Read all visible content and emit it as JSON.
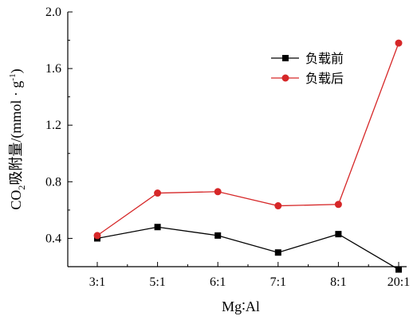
{
  "chart_data": {
    "type": "line",
    "categories": [
      "3:1",
      "5:1",
      "6:1",
      "7:1",
      "8:1",
      "20:1"
    ],
    "series": [
      {
        "name": "负载前",
        "values": [
          0.4,
          0.48,
          0.42,
          0.3,
          0.43,
          0.18
        ],
        "color": "#000000",
        "marker": "square"
      },
      {
        "name": "负载后",
        "values": [
          0.42,
          0.72,
          0.73,
          0.63,
          0.64,
          1.78
        ],
        "color": "#d62728",
        "marker": "circle"
      }
    ],
    "xlabel": "Mg∶Al",
    "ylabel": {
      "prefix": "CO",
      "sub": "2",
      "middle": "吸附量/(mmol · g",
      "sup": "-1",
      "suffix": ")"
    },
    "ylim": [
      0.2,
      2.0
    ],
    "yticks": [
      "0.4",
      "0.8",
      "1.2",
      "1.6",
      "2.0"
    ],
    "grid": false,
    "legend_position": "top-right"
  }
}
